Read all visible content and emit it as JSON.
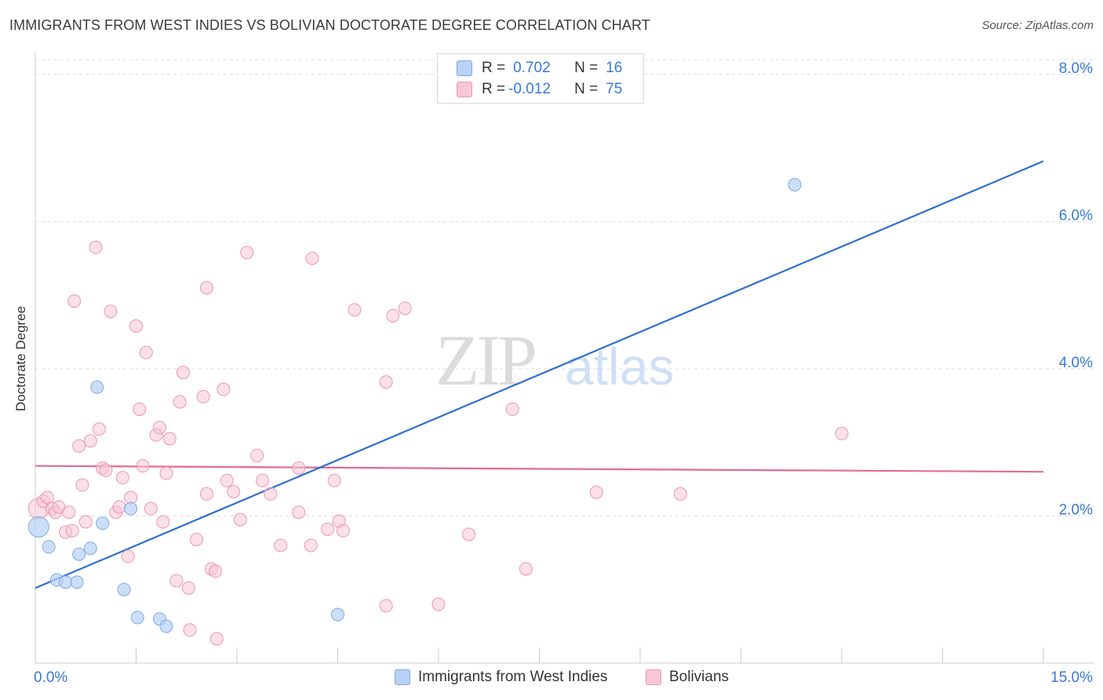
{
  "title": "IMMIGRANTS FROM WEST INDIES VS BOLIVIAN DOCTORATE DEGREE CORRELATION CHART",
  "source": "Source: ZipAtlas.com",
  "watermark": {
    "zip": "ZIP",
    "atlas": "atlas"
  },
  "legend": {
    "rows": [
      {
        "r_label": "R =",
        "r_value": "0.702",
        "n_label": "N =",
        "n_value": "16"
      },
      {
        "r_label": "R =",
        "r_value": "-0.012",
        "n_label": "N =",
        "n_value": "75"
      }
    ]
  },
  "bottom_legend": [
    {
      "label": "Immigrants from West Indies"
    },
    {
      "label": "Bolivians"
    }
  ],
  "colors": {
    "blue_fill": "#b7d2f5",
    "blue_stroke": "#7fa9e0",
    "blue_line": "#2f6fd0",
    "pink_fill": "#f8c6d6",
    "pink_stroke": "#e897b2",
    "pink_line": "#e56a95",
    "tick_text": "#3a78d6",
    "grid": "#dddddd"
  },
  "chart_data": {
    "type": "scatter",
    "title": "IMMIGRANTS FROM WEST INDIES VS BOLIVIAN DOCTORATE DEGREE CORRELATION CHART",
    "xlabel": "",
    "ylabel": "Doctorate Degree",
    "xlim": [
      0,
      15
    ],
    "ylim": [
      0,
      8.2
    ],
    "x_tick_labels": [
      "0.0%",
      "15.0%"
    ],
    "y_ticks": [
      2,
      4,
      6,
      8
    ],
    "y_tick_labels": [
      "2.0%",
      "4.0%",
      "6.0%",
      "8.0%"
    ],
    "grid": true,
    "legend_position": "top-center",
    "series": [
      {
        "name": "Immigrants from West Indies",
        "color": "#b7d2f5",
        "points": [
          {
            "x": 0.05,
            "y": 1.85,
            "big": true
          },
          {
            "x": 0.2,
            "y": 1.58
          },
          {
            "x": 0.32,
            "y": 1.13
          },
          {
            "x": 0.45,
            "y": 1.1
          },
          {
            "x": 0.62,
            "y": 1.1
          },
          {
            "x": 0.65,
            "y": 1.48
          },
          {
            "x": 0.82,
            "y": 1.56
          },
          {
            "x": 0.92,
            "y": 3.75
          },
          {
            "x": 1.0,
            "y": 1.9
          },
          {
            "x": 1.32,
            "y": 1.0
          },
          {
            "x": 1.42,
            "y": 2.1
          },
          {
            "x": 1.52,
            "y": 0.62
          },
          {
            "x": 1.85,
            "y": 0.6
          },
          {
            "x": 1.95,
            "y": 0.5
          },
          {
            "x": 4.5,
            "y": 0.66
          },
          {
            "x": 11.3,
            "y": 6.5
          }
        ],
        "trend": {
          "x": [
            0,
            15
          ],
          "y": [
            1.02,
            6.82
          ]
        }
      },
      {
        "name": "Bolivians",
        "color": "#f8c6d6",
        "points": [
          {
            "x": 0.05,
            "y": 2.1,
            "big": true
          },
          {
            "x": 0.12,
            "y": 2.2
          },
          {
            "x": 0.18,
            "y": 2.25
          },
          {
            "x": 0.25,
            "y": 2.1
          },
          {
            "x": 0.3,
            "y": 2.05
          },
          {
            "x": 0.35,
            "y": 2.12
          },
          {
            "x": 0.45,
            "y": 1.78
          },
          {
            "x": 0.5,
            "y": 2.05
          },
          {
            "x": 0.55,
            "y": 1.8
          },
          {
            "x": 0.58,
            "y": 4.92
          },
          {
            "x": 0.65,
            "y": 2.95
          },
          {
            "x": 0.7,
            "y": 2.42
          },
          {
            "x": 0.75,
            "y": 1.92
          },
          {
            "x": 0.82,
            "y": 3.02
          },
          {
            "x": 0.9,
            "y": 5.65
          },
          {
            "x": 0.95,
            "y": 3.18
          },
          {
            "x": 1.0,
            "y": 2.65
          },
          {
            "x": 1.05,
            "y": 2.62
          },
          {
            "x": 1.12,
            "y": 4.78
          },
          {
            "x": 1.2,
            "y": 2.05
          },
          {
            "x": 1.25,
            "y": 2.12
          },
          {
            "x": 1.3,
            "y": 2.52
          },
          {
            "x": 1.38,
            "y": 1.45
          },
          {
            "x": 1.42,
            "y": 2.25
          },
          {
            "x": 1.5,
            "y": 4.58
          },
          {
            "x": 1.55,
            "y": 3.45
          },
          {
            "x": 1.6,
            "y": 2.68
          },
          {
            "x": 1.65,
            "y": 4.22
          },
          {
            "x": 1.72,
            "y": 2.1
          },
          {
            "x": 1.8,
            "y": 3.1
          },
          {
            "x": 1.85,
            "y": 3.2
          },
          {
            "x": 1.9,
            "y": 1.92
          },
          {
            "x": 1.95,
            "y": 2.58
          },
          {
            "x": 2.0,
            "y": 3.05
          },
          {
            "x": 2.1,
            "y": 1.12
          },
          {
            "x": 2.15,
            "y": 3.55
          },
          {
            "x": 2.2,
            "y": 3.95
          },
          {
            "x": 2.28,
            "y": 1.02
          },
          {
            "x": 2.3,
            "y": 0.45
          },
          {
            "x": 2.4,
            "y": 1.68
          },
          {
            "x": 2.5,
            "y": 3.62
          },
          {
            "x": 2.55,
            "y": 2.3
          },
          {
            "x": 2.55,
            "y": 5.1
          },
          {
            "x": 2.62,
            "y": 1.28
          },
          {
            "x": 2.68,
            "y": 1.25
          },
          {
            "x": 2.7,
            "y": 0.33
          },
          {
            "x": 2.8,
            "y": 3.72
          },
          {
            "x": 2.85,
            "y": 2.48
          },
          {
            "x": 2.95,
            "y": 2.33
          },
          {
            "x": 3.05,
            "y": 1.95
          },
          {
            "x": 3.15,
            "y": 5.58
          },
          {
            "x": 3.3,
            "y": 2.82
          },
          {
            "x": 3.38,
            "y": 2.48
          },
          {
            "x": 3.5,
            "y": 2.3
          },
          {
            "x": 3.65,
            "y": 1.6
          },
          {
            "x": 3.92,
            "y": 2.05
          },
          {
            "x": 3.92,
            "y": 2.65
          },
          {
            "x": 4.1,
            "y": 1.6
          },
          {
            "x": 4.12,
            "y": 5.5
          },
          {
            "x": 4.35,
            "y": 1.82
          },
          {
            "x": 4.45,
            "y": 2.48
          },
          {
            "x": 4.52,
            "y": 1.93
          },
          {
            "x": 4.58,
            "y": 1.8
          },
          {
            "x": 4.75,
            "y": 4.8
          },
          {
            "x": 5.22,
            "y": 0.78
          },
          {
            "x": 5.22,
            "y": 3.82
          },
          {
            "x": 5.32,
            "y": 4.72
          },
          {
            "x": 5.5,
            "y": 4.82
          },
          {
            "x": 6.0,
            "y": 0.8
          },
          {
            "x": 6.45,
            "y": 1.75
          },
          {
            "x": 7.1,
            "y": 3.45
          },
          {
            "x": 7.3,
            "y": 1.28
          },
          {
            "x": 8.35,
            "y": 2.32
          },
          {
            "x": 9.6,
            "y": 2.3
          },
          {
            "x": 12.0,
            "y": 3.12
          }
        ],
        "trend": {
          "x": [
            0,
            15
          ],
          "y": [
            2.68,
            2.6
          ]
        }
      }
    ]
  }
}
